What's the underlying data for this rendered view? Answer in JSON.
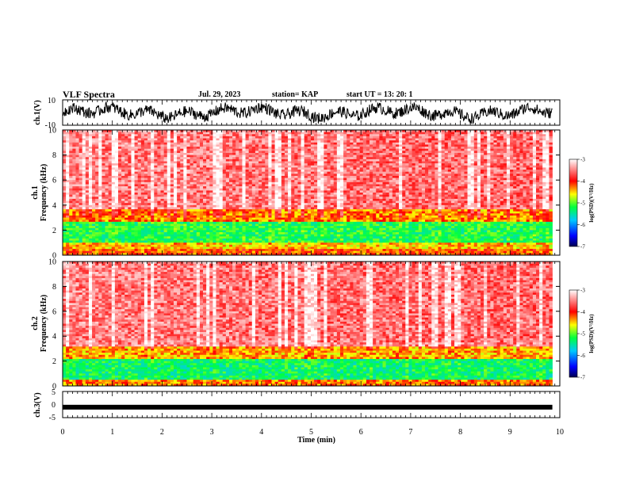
{
  "header": {
    "title": "VLF Spectra",
    "date": "Jul. 29, 2023",
    "station": "station= KAP",
    "start": "start  UT =   13: 20: 1"
  },
  "chart_data": [
    {
      "type": "line",
      "panel": "ch1-waveform",
      "ylabel": "ch.1(V)",
      "yticklabels": [
        "10",
        "-10"
      ],
      "ylim": [
        -10,
        10
      ],
      "xlim": [
        0,
        10
      ],
      "series_color": "#000000"
    },
    {
      "type": "heatmap",
      "panel": "ch1-spectrogram",
      "ylabel_line1": "ch.1",
      "ylabel_line2": "Frequency (kHz)",
      "ylim": [
        0,
        10
      ],
      "yticks": [
        0,
        2,
        4,
        6,
        8,
        10
      ],
      "xlim": [
        0,
        9.85
      ],
      "bands": [
        {
          "from": 0,
          "to": 0.5,
          "level": -4.2
        },
        {
          "from": 0.5,
          "to": 1.0,
          "level": -4.5
        },
        {
          "from": 1.0,
          "to": 2.6,
          "level": -5.2
        },
        {
          "from": 2.6,
          "to": 3.6,
          "level": -4.3
        },
        {
          "from": 3.6,
          "to": 10,
          "level": -3.5
        }
      ],
      "colorbar": {
        "label": "log(PSD)(V²/Hz)",
        "min": -7,
        "max": -3,
        "ticks": [
          "-3",
          "-4",
          "-5",
          "-6",
          "-7"
        ]
      }
    },
    {
      "type": "heatmap",
      "panel": "ch2-spectrogram",
      "ylabel_line1": "ch.2",
      "ylabel_line2": "Frequency (kHz)",
      "ylim": [
        0,
        10
      ],
      "yticks": [
        0,
        2,
        4,
        6,
        8,
        10
      ],
      "xlim": [
        0,
        9.85
      ],
      "bands": [
        {
          "from": 0,
          "to": 0.5,
          "level": -4.3
        },
        {
          "from": 0.5,
          "to": 2.2,
          "level": -5.3
        },
        {
          "from": 2.2,
          "to": 3.2,
          "level": -4.4
        },
        {
          "from": 3.2,
          "to": 10,
          "level": -3.5
        }
      ],
      "colorbar": {
        "label": "log(PSD)(V²/Hz)",
        "min": -7,
        "max": -3,
        "ticks": [
          "-3",
          "-4",
          "-5",
          "-6",
          "-7"
        ]
      }
    },
    {
      "type": "line",
      "panel": "ch3-waveform",
      "ylabel": "ch.3(V)",
      "yticklabels": [
        "5",
        "0",
        "-5"
      ],
      "ylim": [
        -5,
        5
      ],
      "xlim": [
        0,
        10
      ],
      "level": -1,
      "series_color": "#000000"
    }
  ],
  "xaxis": {
    "label": "Time (min)",
    "ticks": [
      0,
      1,
      2,
      3,
      4,
      5,
      6,
      7,
      8,
      9,
      10
    ],
    "range": [
      0,
      10
    ]
  }
}
